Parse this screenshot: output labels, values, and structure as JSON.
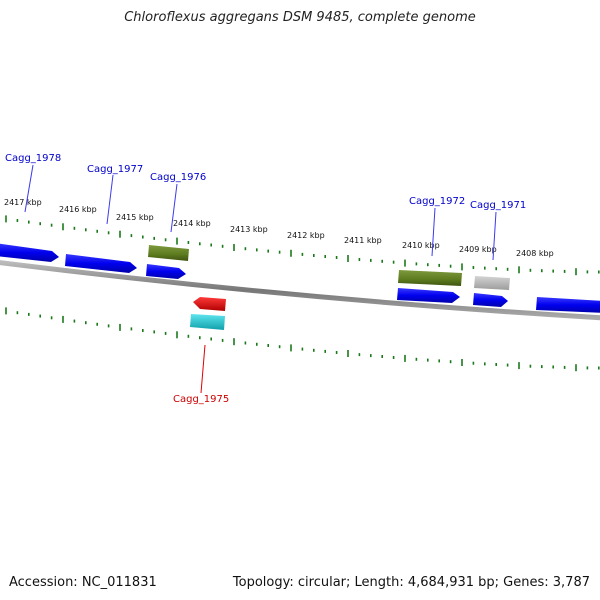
{
  "title": "Chloroflexus aggregans DSM 9485, complete genome",
  "footer": {
    "accession": "Accession: NC_011831",
    "summary": "Topology: circular; Length: 4,684,931 bp; Genes: 3,787"
  },
  "colors": {
    "blue_gene": "#0000ee",
    "olive_gene": "#5c7a1e",
    "gray_gene": "#b8b8b8",
    "red_gene": "#e00000",
    "cyan_gene": "#20c0cc",
    "tick": "#1a7a1a",
    "backbone": "#888888",
    "label_blue": "#0000cc",
    "label_red": "#cc0000"
  },
  "scale_labels": [
    "2417 kbp",
    "2416 kbp",
    "2415 kbp",
    "2414 kbp",
    "2413 kbp",
    "2412 kbp",
    "2411 kbp",
    "2410 kbp",
    "2409 kbp",
    "2408 kbp"
  ],
  "gene_labels": [
    {
      "text": "Cagg_1978",
      "color": "blue"
    },
    {
      "text": "Cagg_1977",
      "color": "blue"
    },
    {
      "text": "Cagg_1976",
      "color": "blue"
    },
    {
      "text": "Cagg_1972",
      "color": "blue"
    },
    {
      "text": "Cagg_1971",
      "color": "blue"
    },
    {
      "text": "Cagg_1975",
      "color": "red"
    }
  ]
}
